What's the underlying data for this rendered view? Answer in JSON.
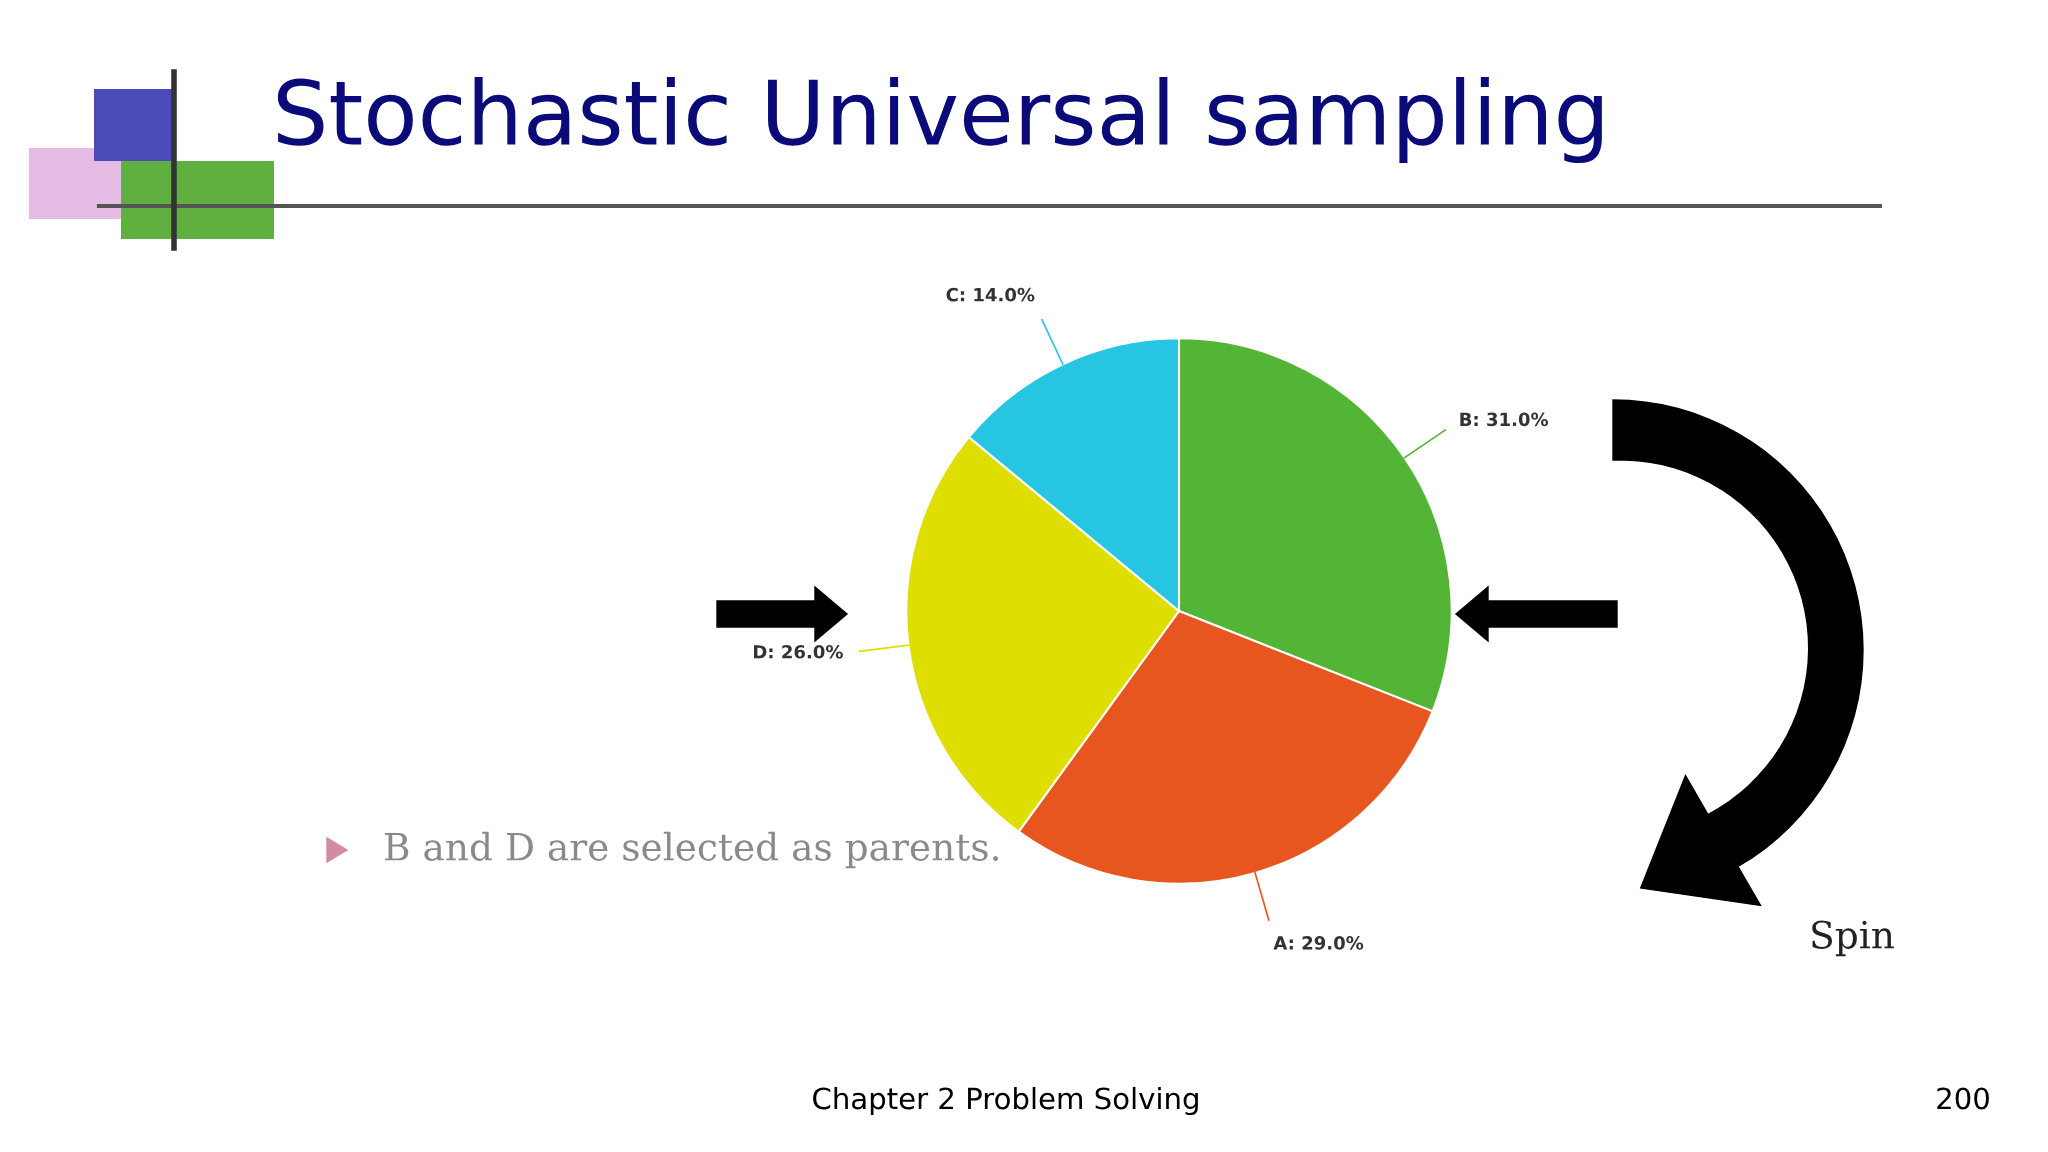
{
  "chart_data": {
    "type": "pie",
    "title": "Stochastic Universal sampling",
    "categories": [
      "B",
      "A",
      "D",
      "C"
    ],
    "values": [
      31,
      29,
      26,
      14
    ],
    "colors": [
      "#52b535",
      "#e8561f",
      "#dede00",
      "#26c6e2"
    ],
    "value_labels": [
      "31.0%",
      "29.0%",
      "26.0%",
      "14.0%"
    ],
    "annotations": [
      "B and D are selected as parents.",
      "Spin",
      "Chapter 2 Problem Solving",
      "200"
    ]
  }
}
